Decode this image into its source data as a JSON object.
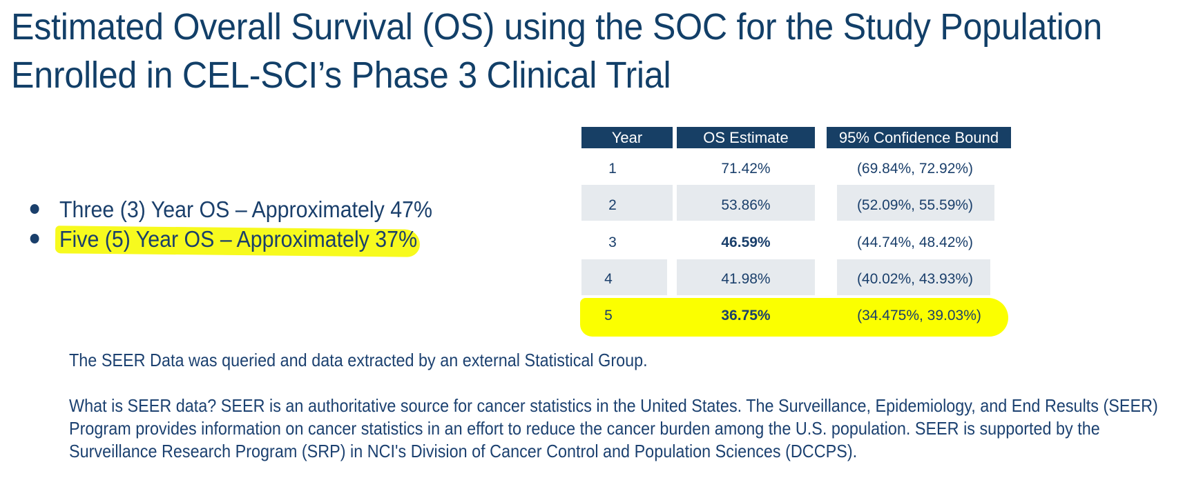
{
  "title": {
    "line1": "Estimated Overall Survival (OS) using the SOC for the Study Population",
    "line2": "Enrolled in CEL-SCI’s Phase 3 Clinical Trial"
  },
  "bullets": [
    "Three (3) Year OS – Approximately 47%",
    "Five (5) Year OS –  Approximately 37%"
  ],
  "table": {
    "headers": [
      "Year",
      "OS Estimate",
      "95% Confidence Bound"
    ],
    "rows": [
      {
        "year": "1",
        "os": "71.42%",
        "ci": "(69.84%, 72.92%)"
      },
      {
        "year": "2",
        "os": "53.86%",
        "ci": "(52.09%, 55.59%)"
      },
      {
        "year": "3",
        "os": "46.59%",
        "ci": "(44.74%, 48.42%)"
      },
      {
        "year": "4",
        "os": "41.98%",
        "ci": "(40.02%, 43.93%)"
      },
      {
        "year": "5",
        "os": "36.75%",
        "ci": "(34.475%, 39.03%)"
      }
    ]
  },
  "highlight_color": "#fbff00",
  "text_color": "#1a3f6b",
  "header_color": "#173f65",
  "notes": {
    "line1": "The SEER Data was queried and data extracted by an external Statistical Group.",
    "para2": [
      "What is SEER data?  SEER is an authoritative source for cancer statistics in the United States. The Surveillance, Epidemiology, and End Results (SEER)",
      "Program provides information on cancer statistics in an effort to reduce the cancer burden among the U.S. population. SEER is supported by the",
      "Surveillance Research Program (SRP) in NCI's Division of Cancer Control and Population Sciences (DCCPS)."
    ]
  }
}
